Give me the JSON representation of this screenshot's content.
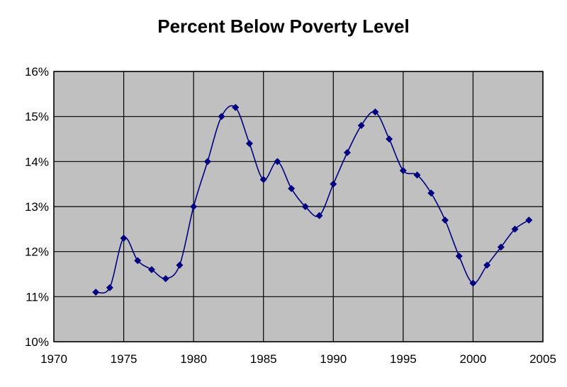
{
  "chart_data": {
    "type": "line",
    "title": "Percent Below Poverty Level",
    "xlabel": "",
    "ylabel": "",
    "xlim": [
      1970,
      2005
    ],
    "ylim": [
      10,
      16
    ],
    "x_ticks": [
      1970,
      1975,
      1980,
      1985,
      1990,
      1995,
      2000,
      2005
    ],
    "y_ticks": [
      "10%",
      "11%",
      "12%",
      "13%",
      "14%",
      "15%",
      "16%"
    ],
    "grid": true,
    "plot_background": "#c0c0c0",
    "series": [
      {
        "color": "#000080",
        "marker": "diamond",
        "smooth": true,
        "x": [
          1973,
          1974,
          1975,
          1976,
          1977,
          1978,
          1979,
          1980,
          1981,
          1982,
          1983,
          1984,
          1985,
          1986,
          1987,
          1988,
          1989,
          1990,
          1991,
          1992,
          1993,
          1994,
          1995,
          1996,
          1997,
          1998,
          1999,
          2000,
          2001,
          2002,
          2003,
          2004
        ],
        "y": [
          11.1,
          11.2,
          12.3,
          11.8,
          11.6,
          11.4,
          11.7,
          13.0,
          14.0,
          15.0,
          15.2,
          14.4,
          13.6,
          14.0,
          13.4,
          13.0,
          12.8,
          13.5,
          14.2,
          14.8,
          15.1,
          14.5,
          13.8,
          13.7,
          13.3,
          12.7,
          11.9,
          11.3,
          11.7,
          12.1,
          12.5,
          12.7
        ]
      }
    ]
  }
}
